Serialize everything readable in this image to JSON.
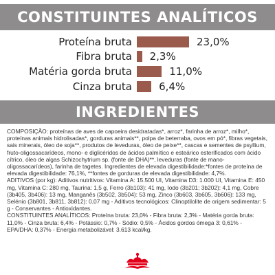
{
  "analytic": {
    "title": "CONSTITUINTES ANALÍTICOS",
    "items": [
      {
        "name": "Proteína bruta",
        "value_text": "23,0%",
        "value": 23.0
      },
      {
        "name": "Fibra bruta",
        "value_text": "2,3%",
        "value": 2.3
      },
      {
        "name": "Matéria gorda bruta",
        "value_text": "11,0%",
        "value": 11.0
      },
      {
        "name": "Cinza bruta",
        "value_text": "6,4%",
        "value": 6.4
      }
    ],
    "bar_color": "#9a5a4c"
  },
  "ingredients": {
    "title": "INGREDIENTES",
    "composition": "COMPOSIÇÃO: proteínas de aves de capoeira desidratadas*, arroz*, farinha de arroz*, milho*, proteínas animais hidrolisadas*, gorduras animais**, polpa de beterraba, ovos em pó*, fibras vegetais, sais minerais, óleo de soja**, produtos de leveduras, óleo de peixe**, cascas e sementes de psyllium, fruto-oligossacarídeos, mono- e diglicéridos de ácidos palmítico e esteárico esterificados com ácido cítrico, óleo de algas Schizochytrium sp. (fonte de DHA)**, leveduras (fonte de mano-oligossacarídeos), farinha de tagetes. Ingredientes de elevada digestibilidade:*fontes de proteína de elevada digestibilidade: 76,1%, **fontes de gorduras de elevada digestibilidade: 4,7%.",
    "additives": "ADITIVOS (por kg): Aditivos nutritivos: Vitamina A: 15.500 UI, Vitamina D3: 1.000 UI, Vitamina E: 450 mg, Vitamina C: 280 mg, Taurina: 1,5 g, Ferro (3b103): 41 mg, Iodo (3b201; 3b202): 4,1 mg, Cobre (3b405, 3b406): 13 mg, Manganês (3b502, 3b504): 53 mg, Zinco (3b603, 3b605, 3b606): 133 mg, Selénio (3b801, 3b811, 3b812): 0,07 mg - Aditivos tecnológicos: Clinoptilolite de origem sedimentar: 5 g - Conservantes - Antioxidantes.",
    "constituents": "CONSTITUINTES ANALÍTICOS: Proteína bruta: 23,0% - Fibra bruta: 2,3% - Matéria gorda bruta: 11,0% - Cinza bruta: 6,4% - Potássio: 0,7% - Sódio: 0,5% - Ácidos gordos ómega 3: 0,61% - EPA/DHA: 0,37% - Energia metabolizável: 3.613 kcal/kg."
  },
  "footer": {
    "logo_icon": "royal-canin-crown-icon",
    "logo_color": "#e2001a"
  }
}
